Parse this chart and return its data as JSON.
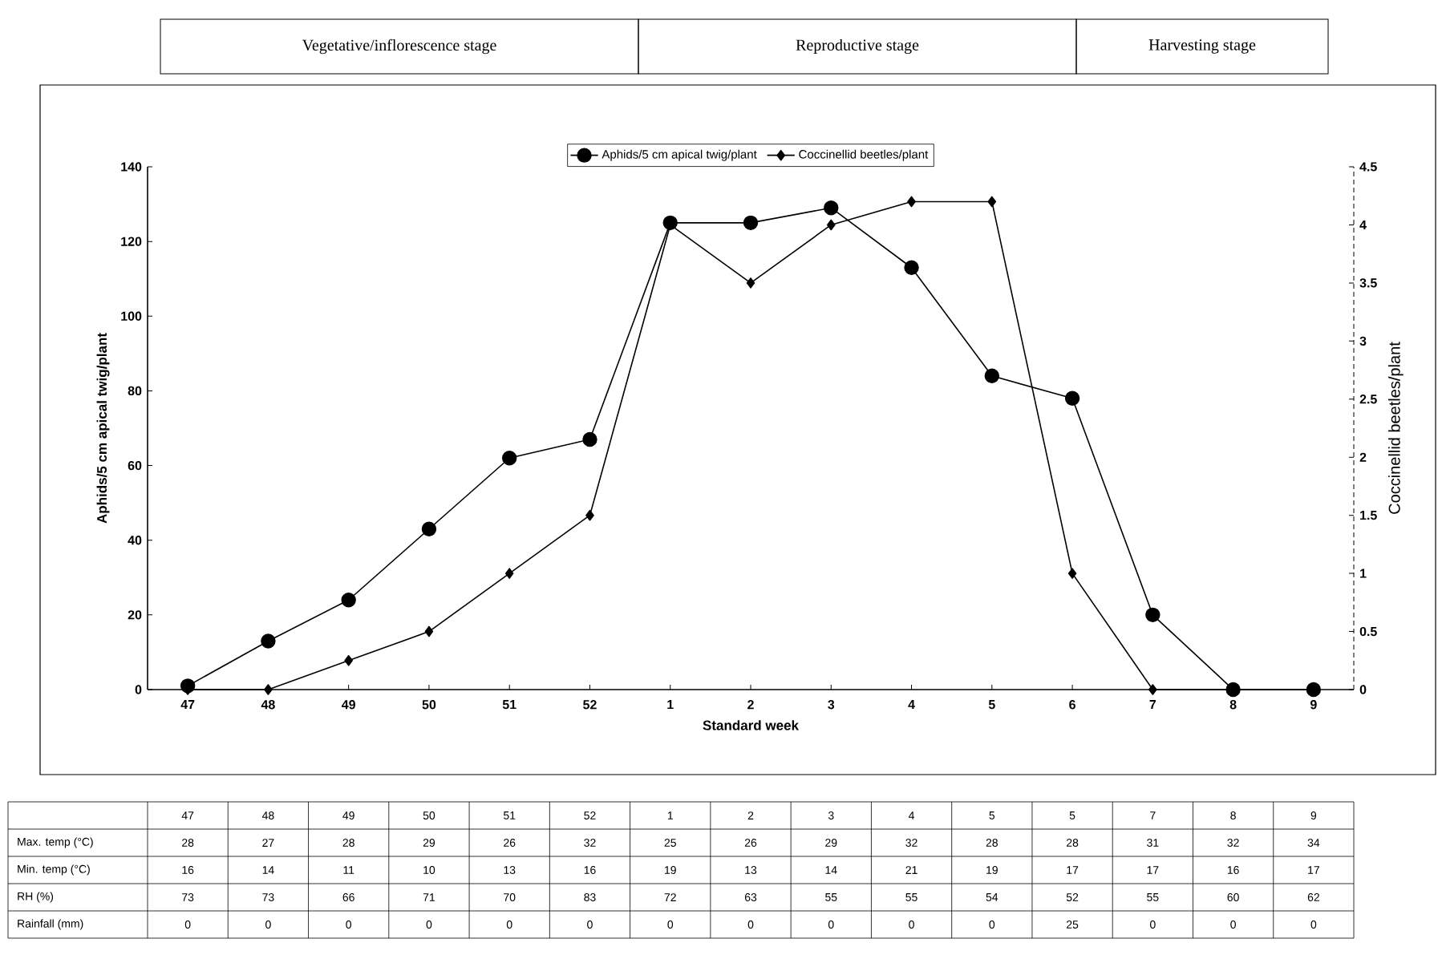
{
  "chart_data": [
    {
      "type": "line",
      "annotations": [
        "Vegetative/inflorescence stage",
        "Reproductive stage",
        "Harvesting stage"
      ],
      "categories": [
        "47",
        "48",
        "49",
        "50",
        "51",
        "52",
        "1",
        "2",
        "3",
        "4",
        "5",
        "6",
        "7",
        "8",
        "9"
      ],
      "series": [
        {
          "name": "Aphids/5 cm apical twig/plant",
          "color": "#000000",
          "marker": "circle",
          "values": [
            1,
            13,
            24,
            43,
            62,
            67,
            125,
            125,
            129,
            113,
            84,
            78,
            20,
            0,
            0
          ]
        },
        {
          "name": "Coccinellid beetles/plant",
          "color": "#000000",
          "marker": "diamond",
          "axis": "y2",
          "values": [
            0,
            0,
            0.25,
            0.5,
            1,
            1.5,
            4,
            3.5,
            4,
            4.2,
            4.2,
            1,
            0,
            0,
            0
          ]
        }
      ],
      "xlabel": "Standard week",
      "ylabel": "Aphids/5 cm apical twig/plant",
      "y2label": "Coccinellid beetles/plant",
      "ylim": [
        0,
        140
      ],
      "yticks": [
        0,
        20,
        40,
        60,
        80,
        100,
        120,
        140
      ],
      "y2lim": [
        0,
        4.5
      ],
      "y2ticks": [
        0,
        0.5,
        1,
        1.5,
        2,
        2.5,
        3,
        3.5,
        4,
        4.5
      ],
      "legend": "top"
    },
    {
      "type": "other",
      "categories": [
        "47",
        "48",
        "49",
        "50",
        "51",
        "52",
        "1",
        "2",
        "3",
        "4",
        "5",
        "5",
        "7",
        "8",
        "9"
      ],
      "series": [
        {
          "name": "Max. temp (°C)",
          "values": [
            28,
            27,
            28,
            29,
            26,
            32,
            25,
            26,
            29,
            32,
            28,
            28,
            31,
            32,
            34
          ]
        },
        {
          "name": "Min. temp (°C)",
          "values": [
            16,
            14,
            11,
            10,
            13,
            16,
            19,
            13,
            14,
            21,
            19,
            17,
            17,
            16,
            17
          ]
        },
        {
          "name": "RH (%)",
          "values": [
            73,
            73,
            66,
            71,
            70,
            83,
            72,
            63,
            55,
            55,
            54,
            52,
            55,
            60,
            62
          ]
        },
        {
          "name": "Rainfall (mm)",
          "values": [
            0,
            0,
            0,
            0,
            0,
            0,
            0,
            0,
            0,
            0,
            0,
            25,
            0,
            0,
            0
          ]
        }
      ],
      "data_labels": true
    }
  ]
}
